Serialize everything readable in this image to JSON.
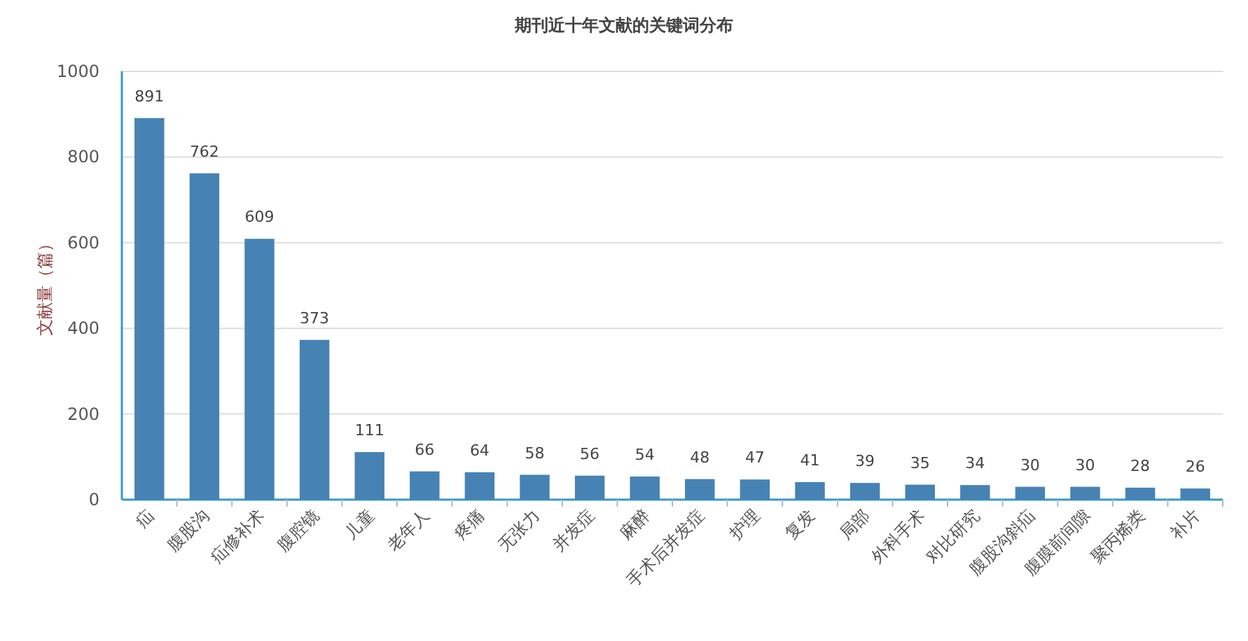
{
  "chart_data": {
    "type": "bar",
    "title": "期刊近十年文献的关键词分布",
    "ylabel": "文献量（篇）",
    "categories": [
      "疝",
      "腹股沟",
      "疝修补术",
      "腹腔镜",
      "儿童",
      "老年人",
      "疼痛",
      "无张力",
      "并发症",
      "麻醉",
      "手术后并发症",
      "护理",
      "复发",
      "局部",
      "外科手术",
      "对比研究",
      "腹股沟斜疝",
      "腹膜前间隙",
      "聚丙烯类",
      "补片"
    ],
    "values": [
      891,
      762,
      609,
      373,
      111,
      66,
      64,
      58,
      56,
      54,
      48,
      47,
      41,
      39,
      35,
      34,
      30,
      30,
      28,
      26
    ],
    "color": "#4682b4",
    "ylim": [
      0,
      1000
    ],
    "yticks": [
      0,
      200,
      400,
      600,
      800,
      1000
    ],
    "grid": "y",
    "data_labels": true
  }
}
